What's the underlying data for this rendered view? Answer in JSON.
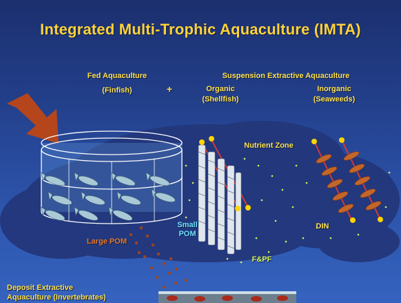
{
  "title": "Integrated Multi-Trophic Aquaculture (IMTA)",
  "fed": {
    "line1": "Fed Aquaculture",
    "line2": "(Finfish)"
  },
  "plus": "+",
  "suspension": "Suspension Extractive Aquaculture",
  "organic": {
    "line1": "Organic",
    "line2": "(Shellfish)"
  },
  "inorganic": {
    "line1": "Inorganic",
    "line2": "(Seaweeds)"
  },
  "nutrient_zone": "Nutrient Zone",
  "small_pom": {
    "line1": "Small",
    "line2": "POM"
  },
  "large_pom": "Large POM",
  "din": "DIN",
  "fpf": "F&PF",
  "deposit": {
    "line1": "Deposit Extractive",
    "line2": "Aquaculture (Invertebrates)"
  },
  "colors": {
    "title": "#ffd23a",
    "label": "#ffe14d",
    "cyan": "#6fe1ff",
    "arrow": "#b5461c",
    "zone": "#243978"
  }
}
